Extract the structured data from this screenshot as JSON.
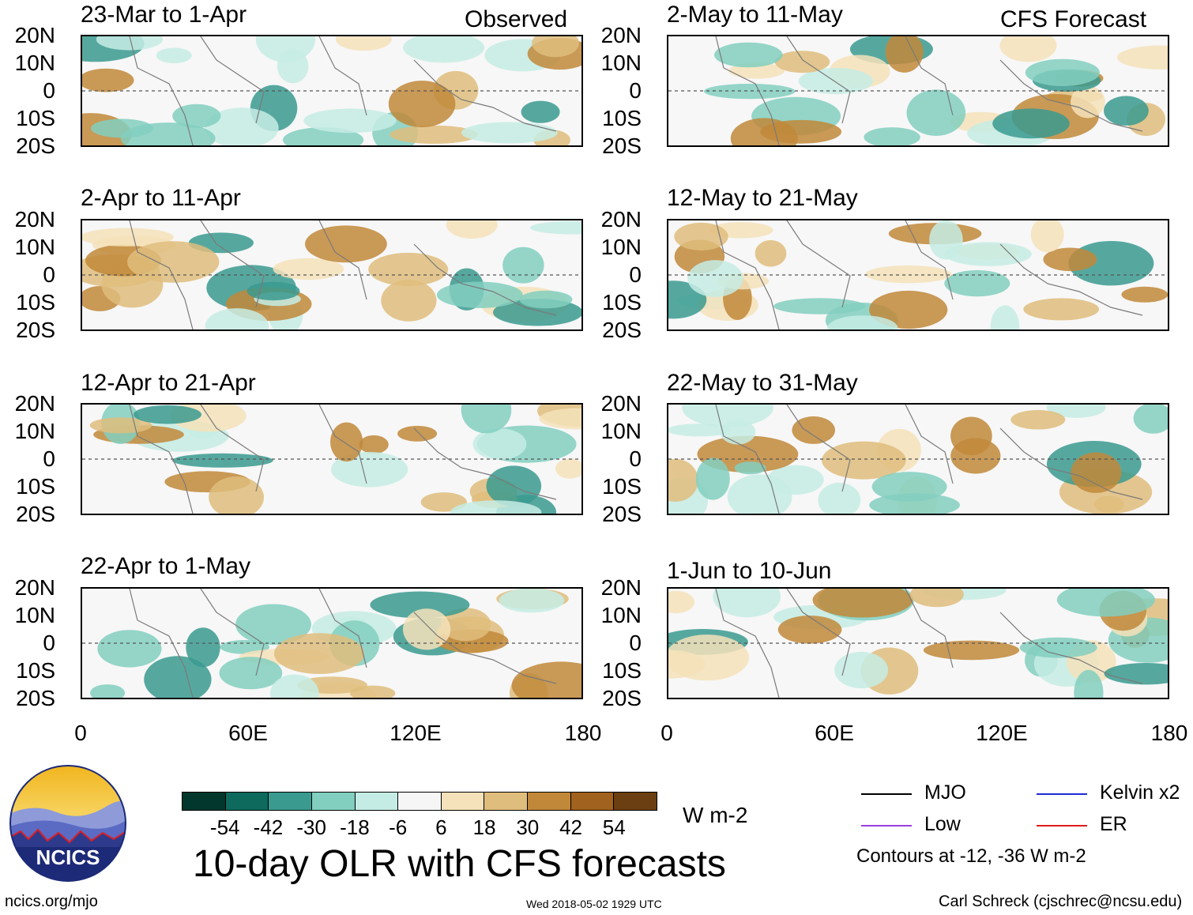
{
  "header": {
    "observed_label": "Observed",
    "forecast_label": "CFS Forecast"
  },
  "chart_data": {
    "type": "heatmap",
    "title": "10-day OLR with CFS forecasts",
    "units": "W m-2",
    "ylim": [
      -20,
      20
    ],
    "xlim": [
      0,
      180
    ],
    "y_ticks": [
      "20N",
      "10N",
      "0",
      "10S",
      "20S"
    ],
    "x_ticks": [
      "0",
      "60E",
      "120E",
      "180"
    ],
    "colorbar": {
      "levels": [
        "-54",
        "-42",
        "-30",
        "-18",
        "-6",
        "6",
        "18",
        "30",
        "42",
        "54"
      ],
      "colors": [
        "#01372c",
        "#0e6a5d",
        "#3a9a8f",
        "#82cfbf",
        "#c5ece4",
        "#f6f6f6",
        "#f5e2ba",
        "#dfbd7d",
        "#c1883a",
        "#a0621e",
        "#6b3f12"
      ]
    },
    "observed_panels": [
      "23-Mar to 1-Apr",
      "2-Apr to 11-Apr",
      "12-Apr to 21-Apr",
      "22-Apr to 1-May"
    ],
    "forecast_panels": [
      "2-May to 11-May",
      "12-May to 21-May",
      "22-May to 31-May",
      "1-Jun to 10-Jun"
    ]
  },
  "legend": {
    "items": [
      {
        "label": "MJO",
        "color": "#000000"
      },
      {
        "label": "Kelvin x2",
        "color": "#1f2bd6"
      },
      {
        "label": "Low",
        "color": "#9b3fe0"
      },
      {
        "label": "ER",
        "color": "#e01b1b"
      }
    ],
    "note": "Contours at -12, -36 W m-2"
  },
  "logo": {
    "text": "NCICS"
  },
  "footer": {
    "url": "ncics.org/mjo",
    "timestamp": "Wed 2018-05-02 1929 UTC",
    "author": "Carl Schreck (cjschrec@ncsu.edu)"
  }
}
